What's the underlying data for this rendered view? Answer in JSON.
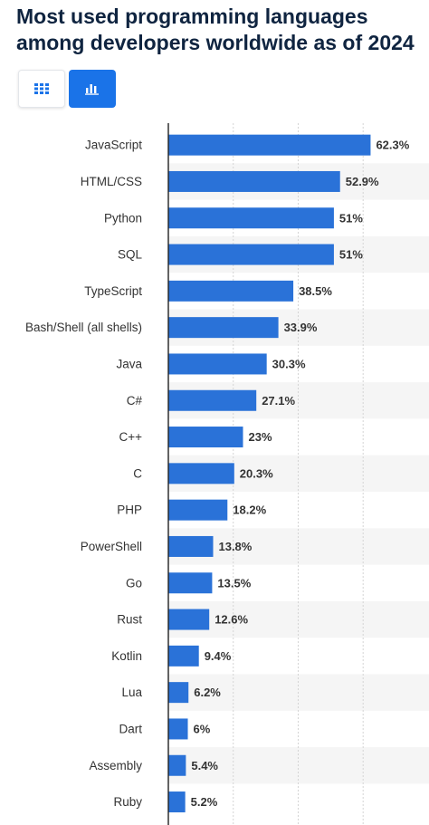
{
  "page": {
    "title": "Most used programming languages among developers worldwide as of 2024"
  },
  "view_toggle": {
    "table_icon": "grid-table-icon",
    "chart_icon": "bar-chart-icon",
    "active": "chart",
    "colors": {
      "active_bg": "#1a73e8",
      "inactive_bg": "#ffffff"
    }
  },
  "chart_data": {
    "type": "bar",
    "orientation": "horizontal",
    "categories": [
      "JavaScript",
      "HTML/CSS",
      "Python",
      "SQL",
      "TypeScript",
      "Bash/Shell (all shells)",
      "Java",
      "C#",
      "C++",
      "C",
      "PHP",
      "PowerShell",
      "Go",
      "Rust",
      "Kotlin",
      "Lua",
      "Dart",
      "Assembly",
      "Ruby"
    ],
    "values": [
      62.3,
      52.9,
      51,
      51,
      38.5,
      33.9,
      30.3,
      27.1,
      23,
      20.3,
      18.2,
      13.8,
      13.5,
      12.6,
      9.4,
      6.2,
      6,
      5.4,
      5.2
    ],
    "value_labels": [
      "62.3%",
      "52.9%",
      "51%",
      "51%",
      "38.5%",
      "33.9%",
      "30.3%",
      "27.1%",
      "23%",
      "20.3%",
      "18.2%",
      "13.8%",
      "13.5%",
      "12.6%",
      "9.4%",
      "6.2%",
      "6%",
      "5.4%",
      "5.2%"
    ],
    "xlim": [
      0,
      75
    ],
    "grid": true,
    "bar_color": "#2a72d8",
    "stripe_color": "#f5f5f5"
  }
}
